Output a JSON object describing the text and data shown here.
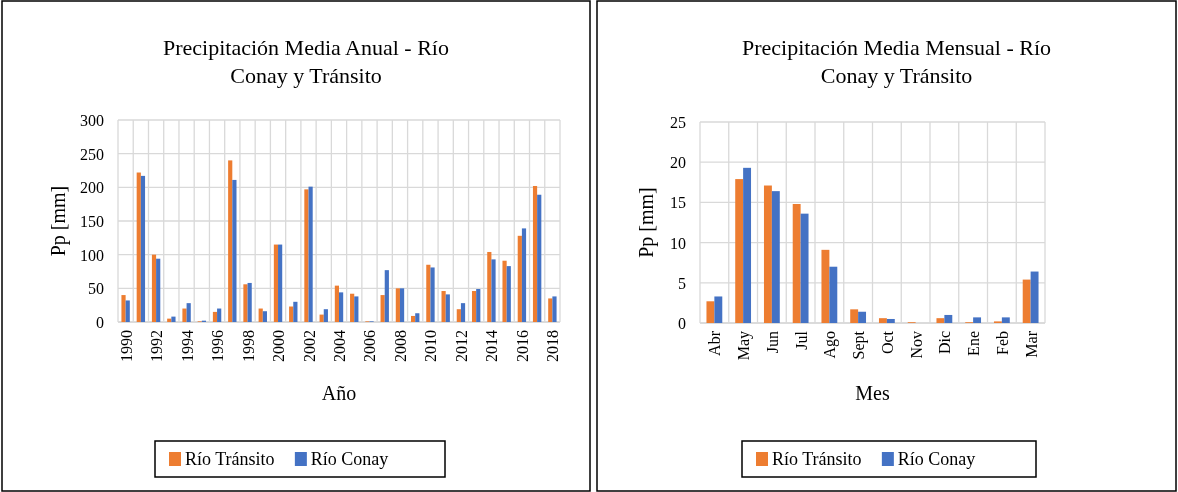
{
  "chart_data": [
    {
      "type": "bar",
      "title": "Precipitación Media Anual - Río Conay y Tránsito",
      "xlabel": "Año",
      "ylabel": "Pp [mm]",
      "categories": [
        "1990",
        null,
        "1992",
        null,
        "1994",
        null,
        "1996",
        null,
        "1998",
        null,
        "2000",
        null,
        "2002",
        null,
        "2004",
        null,
        "2006",
        null,
        "2008",
        null,
        "2010",
        null,
        "2012",
        null,
        "2014",
        null,
        "2016",
        null,
        "2018"
      ],
      "series": [
        {
          "name": "Río Tránsito",
          "color": "#ed7d31",
          "values": [
            40,
            222,
            100,
            5,
            20,
            1,
            15,
            240,
            56,
            20,
            115,
            23,
            197,
            11,
            54,
            42,
            1,
            40,
            50,
            9,
            85,
            46,
            19,
            46,
            104,
            91,
            128,
            202,
            35
          ]
        },
        {
          "name": "Río Conay",
          "color": "#4472c4",
          "values": [
            32,
            217,
            94,
            8,
            28,
            2,
            20,
            211,
            58,
            16,
            115,
            30,
            201,
            19,
            44,
            38,
            1,
            77,
            50,
            13,
            81,
            41,
            28,
            49,
            93,
            83,
            139,
            189,
            38
          ]
        }
      ],
      "ylim": [
        0,
        300
      ],
      "yticks": [
        0,
        50,
        100,
        150,
        200,
        250,
        300
      ],
      "grid": true,
      "legend": "bottom"
    },
    {
      "type": "bar",
      "title": "Precipitación Media Mensual - Río Conay y Tránsito",
      "xlabel": "Mes",
      "ylabel": "Pp [mm]",
      "categories": [
        "Abr",
        "May",
        "Jun",
        "Jul",
        "Ago",
        "Sept",
        "Oct",
        "Nov",
        "Dic",
        "Ene",
        "Feb",
        "Mar"
      ],
      "series": [
        {
          "name": "Río Tránsito",
          "color": "#ed7d31",
          "values": [
            2.7,
            17.9,
            17.1,
            14.8,
            9.1,
            1.7,
            0.6,
            0.1,
            0.6,
            0.1,
            0.2,
            5.4
          ]
        },
        {
          "name": "Río Conay",
          "color": "#4472c4",
          "values": [
            3.3,
            19.3,
            16.4,
            13.6,
            7.0,
            1.4,
            0.5,
            0,
            1.0,
            0.7,
            0.7,
            6.4
          ]
        }
      ],
      "ylim": [
        0,
        25
      ],
      "yticks": [
        0,
        5,
        10,
        15,
        20,
        25
      ],
      "grid": true,
      "legend": "bottom"
    }
  ]
}
